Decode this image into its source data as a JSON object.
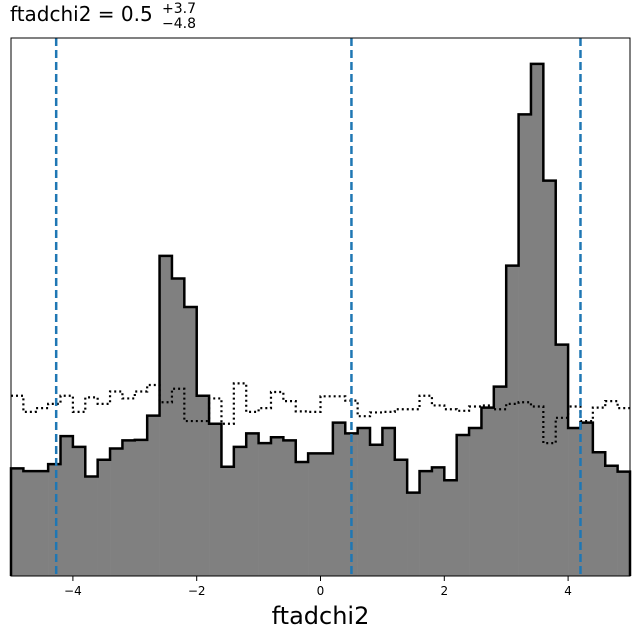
{
  "chart_data": {
    "type": "histogram",
    "title": {
      "prefix": "ftadchi2 = 0.5",
      "sup": "+3.7",
      "sub": "−4.8"
    },
    "xlabel": "ftadchi2",
    "ylabel": "",
    "xlim": [
      -5,
      5
    ],
    "ylim": [
      0,
      100
    ],
    "x_ticks": [
      {
        "value": -4,
        "label": "−4"
      },
      {
        "value": -2,
        "label": "−2"
      },
      {
        "value": 0,
        "label": "0"
      },
      {
        "value": 2,
        "label": "2"
      },
      {
        "value": 4,
        "label": "4"
      }
    ],
    "y_ticks_shown": false,
    "bin_edges_range": [
      -5,
      5
    ],
    "bin_count": 50,
    "series": [
      {
        "style": "filled",
        "fill": "#808080",
        "edge": "#000000",
        "values": [
          20,
          19.5,
          19.5,
          20.8,
          26,
          24,
          18.5,
          21.6,
          23.7,
          25.2,
          25.3,
          29.8,
          59.5,
          55.3,
          50,
          33.5,
          28.3,
          20.3,
          24,
          26.5,
          24.7,
          25.8,
          25.2,
          21.2,
          22.8,
          22.8,
          28.5,
          26.5,
          27.5,
          24.4,
          27.5,
          21.6,
          15.5,
          19.5,
          20.2,
          17.8,
          26.2,
          27.5,
          31.3,
          35.2,
          57.7,
          85.8,
          95.2,
          73.5,
          43,
          27.5,
          28.5,
          23,
          20.5,
          19.4
        ]
      },
      {
        "style": "dotted",
        "edge": "#000000",
        "values": [
          33.5,
          30.5,
          31.2,
          32,
          33.5,
          30.5,
          33.2,
          32,
          34.3,
          33,
          34.3,
          35.5,
          32.3,
          34.8,
          28.8,
          28.8,
          33,
          28.3,
          35.8,
          30.5,
          31.2,
          34.2,
          32.5,
          30.6,
          30.5,
          33.4,
          33.4,
          32.6,
          29.7,
          30.4,
          30.5,
          31,
          31,
          33.5,
          31.7,
          31,
          30.7,
          31.5,
          31.7,
          31,
          32,
          32.3,
          31.5,
          24.7,
          29.4,
          31.5,
          28.8,
          31.3,
          32.5,
          31.2
        ]
      }
    ],
    "vlines": [
      -4.27,
      0.5,
      4.2
    ],
    "vline_color": "#1f77b4",
    "grid": false,
    "legend": false
  }
}
